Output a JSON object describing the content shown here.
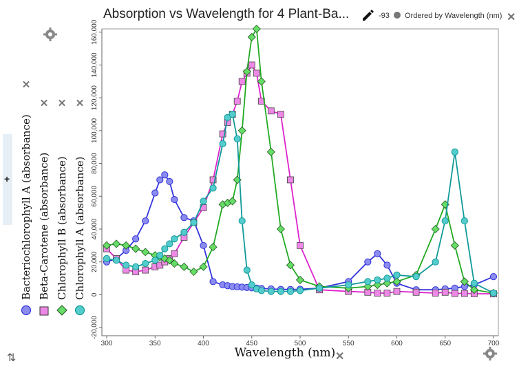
{
  "header": {
    "title": "Absorption vs Wavelength for 4 Plant-Ba...",
    "count": "-93",
    "order_label": "Ordered by Wavelength (nm)"
  },
  "chart_data": {
    "type": "scatter",
    "title": "Absorption vs Wavelength for 4 Plant-Ba...",
    "xlabel": "Wavelength (nm)",
    "ylabel": "",
    "xlim": [
      295,
      705
    ],
    "ylim": [
      -25000,
      162000
    ],
    "xticks": [
      300,
      350,
      400,
      450,
      500,
      550,
      600,
      650,
      700
    ],
    "yticks": [
      -20000,
      0,
      20000,
      40000,
      60000,
      80000,
      100000,
      120000,
      140000,
      160000
    ],
    "x": [
      300,
      310,
      320,
      330,
      340,
      350,
      355,
      360,
      365,
      370,
      380,
      390,
      400,
      410,
      420,
      425,
      430,
      435,
      440,
      445,
      450,
      455,
      460,
      470,
      480,
      490,
      500,
      520,
      550,
      570,
      580,
      590,
      600,
      620,
      640,
      650,
      660,
      670,
      680,
      700
    ],
    "series": [
      {
        "name": "Bacteriochlorophyll A (absorbance)",
        "color": "#3333dd",
        "fill": "#8c8cf0",
        "marker": "circle",
        "values": [
          20000,
          22000,
          27000,
          34000,
          45000,
          62000,
          70000,
          73000,
          69000,
          58000,
          47000,
          45000,
          30000,
          8000,
          6000,
          5500,
          5000,
          4800,
          4600,
          4400,
          4200,
          4000,
          3800,
          3500,
          3200,
          3200,
          3300,
          4000,
          8000,
          20000,
          25000,
          18000,
          7000,
          3000,
          3000,
          3500,
          4000,
          5000,
          6000,
          11000
        ]
      },
      {
        "name": "Beta-Carotene (absorbance)",
        "color": "#dd22cc",
        "fill": "#ee88e6",
        "marker": "square",
        "values": [
          28000,
          22000,
          15000,
          14000,
          15000,
          17000,
          18000,
          20000,
          22000,
          25000,
          35000,
          44000,
          53000,
          70000,
          98000,
          105000,
          110000,
          118000,
          130000,
          135000,
          140000,
          135000,
          118000,
          112000,
          110000,
          70000,
          30000,
          3000,
          2000,
          1500,
          1000,
          1000,
          2000,
          1500,
          1000,
          1500,
          800,
          800,
          600,
          500
        ]
      },
      {
        "name": "Chlorophyll B (absorbance)",
        "color": "#22aa22",
        "fill": "#66dd66",
        "marker": "diamond",
        "values": [
          30000,
          31000,
          30000,
          28000,
          26000,
          24000,
          23000,
          22000,
          21000,
          19000,
          17000,
          14000,
          17000,
          29000,
          55000,
          56000,
          57000,
          70000,
          100000,
          136000,
          157000,
          162000,
          130000,
          87000,
          40000,
          18000,
          9000,
          5000,
          4000,
          5000,
          6000,
          7000,
          8000,
          12000,
          40000,
          55000,
          30000,
          8000,
          3000,
          1000
        ]
      },
      {
        "name": "Chlorophyll A (absorbance)",
        "color": "#119999",
        "fill": "#55cccc",
        "marker": "circle",
        "values": [
          22000,
          21000,
          18000,
          17000,
          19000,
          21000,
          24000,
          28000,
          31000,
          34000,
          38000,
          44000,
          57000,
          65000,
          92000,
          108000,
          110000,
          95000,
          45000,
          15000,
          6000,
          3500,
          2500,
          2000,
          2000,
          2000,
          2500,
          4000,
          6000,
          8000,
          9000,
          10000,
          12000,
          11000,
          20000,
          45000,
          87000,
          45000,
          7000,
          1000
        ]
      }
    ]
  }
}
